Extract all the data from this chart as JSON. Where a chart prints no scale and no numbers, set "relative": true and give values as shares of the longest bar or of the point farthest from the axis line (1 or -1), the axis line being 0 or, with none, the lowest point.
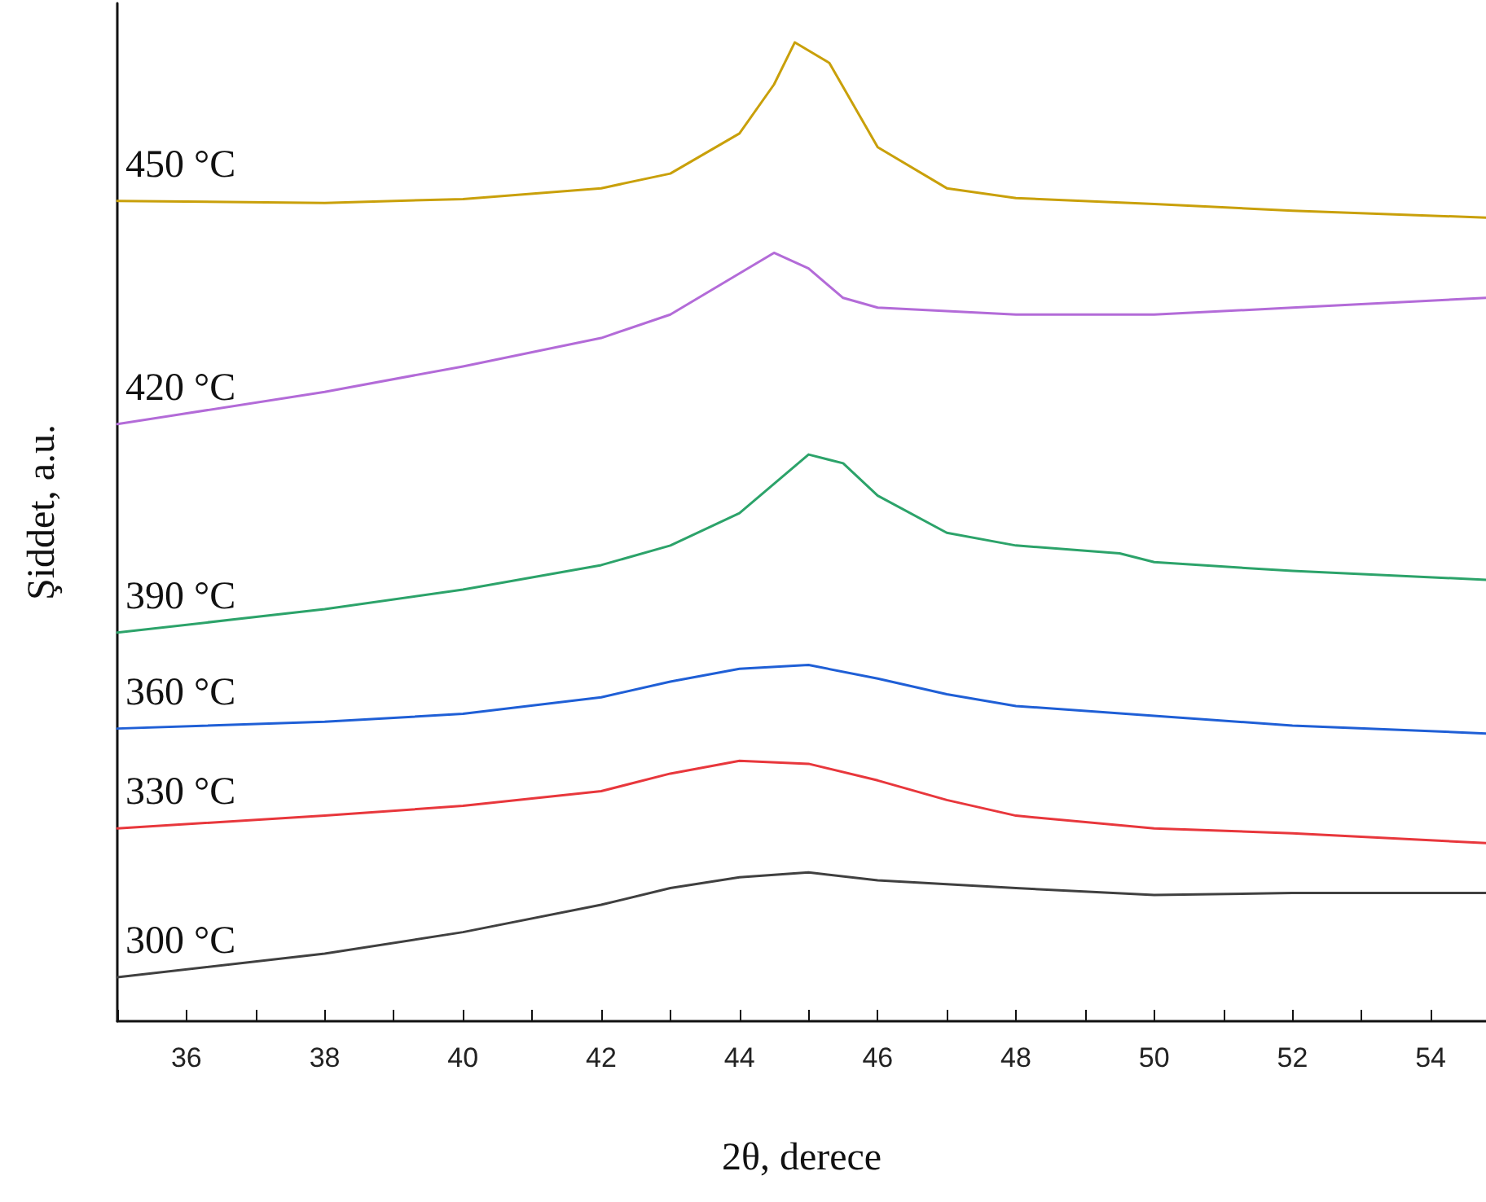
{
  "chart_data": {
    "type": "line",
    "relative": true,
    "xlabel": "2θ, derece",
    "ylabel": "Şiddet, a.u.",
    "xlim": [
      35,
      54.8
    ],
    "xticks": [
      {
        "value": 35,
        "label": null
      },
      36,
      {
        "value": 37,
        "label": null
      },
      38,
      {
        "value": 39,
        "label": null
      },
      40,
      {
        "value": 41,
        "label": null
      },
      42,
      {
        "value": 43,
        "label": null
      },
      44,
      {
        "value": 45,
        "label": null
      },
      46,
      {
        "value": 47,
        "label": null
      },
      48,
      {
        "value": 49,
        "label": null
      },
      50,
      {
        "value": 51,
        "label": null
      },
      52,
      {
        "value": 53,
        "label": null
      },
      54
    ],
    "grid": false,
    "legend": false,
    "marker": "none",
    "line_style": "solid",
    "series": [
      {
        "name": "300 °C",
        "color": "#404040",
        "x": [
          35,
          38,
          40,
          42,
          43,
          44,
          45,
          46,
          48,
          50,
          52,
          54.8
        ],
        "values": [
          0.045,
          0.069,
          0.091,
          0.119,
          0.136,
          0.147,
          0.152,
          0.144,
          0.136,
          0.129,
          0.131,
          0.131
        ]
      },
      {
        "name": "330 °C",
        "color": "#e8373c",
        "x": [
          35,
          38,
          40,
          42,
          43,
          44,
          45,
          46,
          47,
          48,
          50,
          52,
          54.8
        ],
        "values": [
          0.197,
          0.21,
          0.22,
          0.235,
          0.253,
          0.266,
          0.263,
          0.246,
          0.226,
          0.21,
          0.197,
          0.192,
          0.182
        ]
      },
      {
        "name": "360 °C",
        "color": "#1f5fd6",
        "x": [
          35,
          38,
          40,
          42,
          43,
          44,
          45,
          46,
          47,
          48,
          50,
          52,
          54.8
        ],
        "values": [
          0.299,
          0.306,
          0.314,
          0.331,
          0.347,
          0.36,
          0.364,
          0.35,
          0.334,
          0.322,
          0.312,
          0.302,
          0.294
        ]
      },
      {
        "name": "390 °C",
        "color": "#2ca36a",
        "x": [
          35,
          38,
          40,
          42,
          43,
          44,
          44.5,
          45,
          45.5,
          46,
          47,
          48,
          49.5,
          50,
          52,
          54.8
        ],
        "values": [
          0.397,
          0.421,
          0.441,
          0.466,
          0.486,
          0.519,
          0.549,
          0.579,
          0.57,
          0.537,
          0.499,
          0.486,
          0.478,
          0.469,
          0.46,
          0.451
        ]
      },
      {
        "name": "420 °C",
        "color": "#b36bd8",
        "x": [
          35,
          38,
          40,
          42,
          43,
          44,
          44.5,
          45,
          45.5,
          46,
          48,
          50,
          52,
          54.8
        ],
        "values": [
          0.61,
          0.643,
          0.669,
          0.698,
          0.722,
          0.764,
          0.785,
          0.769,
          0.739,
          0.729,
          0.722,
          0.722,
          0.729,
          0.739
        ]
      },
      {
        "name": "450 °C",
        "color": "#c9a00a",
        "x": [
          35,
          38,
          40,
          42,
          43,
          44,
          44.5,
          44.8,
          45.3,
          46,
          47,
          48,
          50,
          52,
          54.8
        ],
        "values": [
          0.838,
          0.836,
          0.84,
          0.851,
          0.866,
          0.907,
          0.957,
          1,
          0.979,
          0.893,
          0.851,
          0.841,
          0.835,
          0.828,
          0.821
        ]
      }
    ]
  }
}
